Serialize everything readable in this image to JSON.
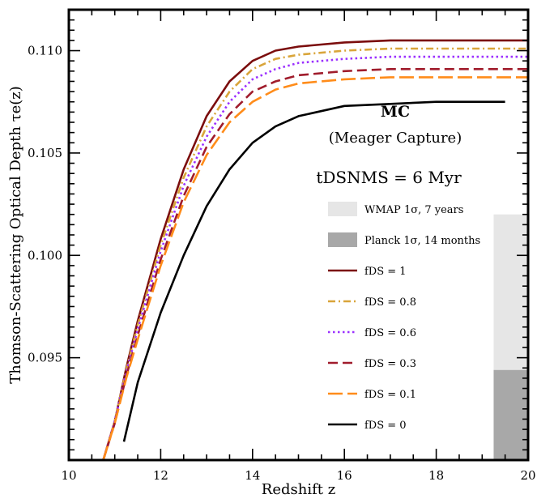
{
  "chart_data": {
    "type": "line",
    "xlabel": "Redshift z",
    "ylabel": "Thomson-Scattering Optical Depth τe(z)",
    "xlim": [
      10,
      20
    ],
    "ylim": [
      0.09,
      0.112
    ],
    "x_ticks": [
      10,
      12,
      14,
      16,
      18,
      20
    ],
    "x_tick_labels": [
      "10",
      "12",
      "14",
      "16",
      "18",
      "20"
    ],
    "y_ticks": [
      0.095,
      0.1,
      0.105,
      0.11
    ],
    "y_tick_labels": [
      "0.095",
      "0.100",
      "0.105",
      "0.110"
    ],
    "grid": false,
    "legend_position": "right",
    "annotations": {
      "model": "MC",
      "model_full": "(Meager Capture)",
      "lifetime": "tDSNMS = 6 Myr"
    },
    "bands": [
      {
        "name": "WMAP 1σ, 7 years",
        "color": "#e6e6e6",
        "x_from": 19.25,
        "x_to": 20,
        "y_from": 0.09,
        "y_to": 0.102
      },
      {
        "name": "Planck 1σ, 14 months",
        "color": "#a8a8a8",
        "x_from": 19.25,
        "x_to": 20,
        "y_from": 0.09,
        "y_to": 0.0944
      }
    ],
    "series": [
      {
        "name": "fDS = 1",
        "color": "#7b0d0d",
        "dash": "solid",
        "x": [
          10.75,
          11,
          11.25,
          11.5,
          12,
          12.5,
          13,
          13.5,
          14,
          14.5,
          15,
          16,
          17,
          18,
          19,
          20
        ],
        "y": [
          0.09,
          0.0919,
          0.0945,
          0.0968,
          0.1008,
          0.1042,
          0.1068,
          0.1085,
          0.1095,
          0.11,
          0.1102,
          0.1104,
          0.1105,
          0.1105,
          0.1105,
          0.1105
        ]
      },
      {
        "name": "fDS = 0.8",
        "color": "#d9a53a",
        "dash": "dashdot",
        "x": [
          10.75,
          11,
          11.25,
          11.5,
          12,
          12.5,
          13,
          13.5,
          14,
          14.5,
          15,
          16,
          17,
          18,
          19,
          20
        ],
        "y": [
          0.09,
          0.0919,
          0.0944,
          0.0966,
          0.1005,
          0.1038,
          0.1063,
          0.108,
          0.1091,
          0.1096,
          0.1098,
          0.11,
          0.1101,
          0.1101,
          0.1101,
          0.1101
        ]
      },
      {
        "name": "fDS = 0.6",
        "color": "#9b30ff",
        "dash": "dotted",
        "x": [
          10.75,
          11,
          11.25,
          11.5,
          12,
          12.5,
          13,
          13.5,
          14,
          14.5,
          15,
          16,
          17,
          18,
          19,
          20
        ],
        "y": [
          0.09,
          0.0919,
          0.0943,
          0.0964,
          0.1002,
          0.1034,
          0.1058,
          0.1075,
          0.1086,
          0.1091,
          0.1094,
          0.1096,
          0.1097,
          0.1097,
          0.1097,
          0.1097
        ]
      },
      {
        "name": "fDS = 0.3",
        "color": "#a01c2c",
        "dash": "dashed",
        "x": [
          10.75,
          11,
          11.25,
          11.5,
          12,
          12.5,
          13,
          13.5,
          14,
          14.5,
          15,
          16,
          17,
          18,
          19,
          20
        ],
        "y": [
          0.09,
          0.0918,
          0.0941,
          0.0961,
          0.0998,
          0.1029,
          0.1053,
          0.1069,
          0.108,
          0.1085,
          0.1088,
          0.109,
          0.1091,
          0.1091,
          0.1091,
          0.1091
        ]
      },
      {
        "name": "fDS = 0.1",
        "color": "#ff8c1a",
        "dash": "longdash",
        "x": [
          10.75,
          11,
          11.25,
          11.5,
          12,
          12.5,
          13,
          13.5,
          14,
          14.5,
          15,
          16,
          17,
          18,
          19,
          20
        ],
        "y": [
          0.09,
          0.0918,
          0.094,
          0.0959,
          0.0995,
          0.1026,
          0.1049,
          0.1065,
          0.1075,
          0.1081,
          0.1084,
          0.1086,
          0.1087,
          0.1087,
          0.1087,
          0.1087
        ]
      },
      {
        "name": "fDS = 0",
        "color": "#000000",
        "dash": "solid",
        "x": [
          11.2,
          11.5,
          12,
          12.5,
          13,
          13.5,
          14,
          14.5,
          15,
          16,
          17,
          18,
          19,
          19.5
        ],
        "y": [
          0.0909,
          0.0938,
          0.0972,
          0.1,
          0.1024,
          0.1042,
          0.1055,
          0.1063,
          0.1068,
          0.1073,
          0.1074,
          0.1075,
          0.1075,
          0.1075
        ]
      }
    ]
  }
}
